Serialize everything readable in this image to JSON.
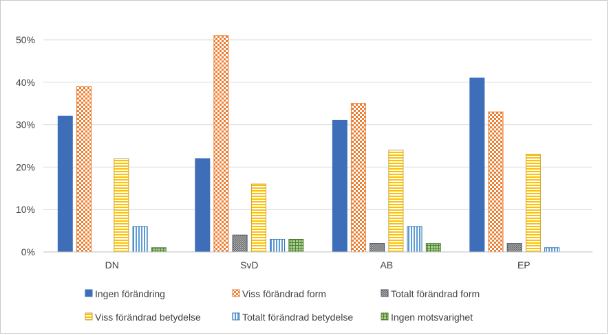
{
  "chart_data": {
    "type": "bar",
    "title": "",
    "xlabel": "",
    "ylabel": "",
    "categories": [
      "DN",
      "SvD",
      "AB",
      "EP"
    ],
    "ylim": [
      0,
      55
    ],
    "y_ticks": [
      0,
      10,
      20,
      30,
      40,
      50
    ],
    "y_tick_labels": [
      "0%",
      "10%",
      "20%",
      "30%",
      "40%",
      "50%"
    ],
    "grid": true,
    "legend_position": "bottom",
    "series": [
      {
        "name": "Ingen förändring",
        "values": [
          32,
          22,
          31,
          41
        ],
        "color": "#3f6eb9",
        "pattern": "solid"
      },
      {
        "name": "Viss förändrad form",
        "values": [
          39,
          51,
          35,
          33
        ],
        "color": "#ed7d31",
        "pattern": "checker"
      },
      {
        "name": "Totalt förändrad form",
        "values": [
          0,
          4,
          2,
          2
        ],
        "color": "#7f7f7f",
        "pattern": "dots"
      },
      {
        "name": "Viss förändrad betydelse",
        "values": [
          22,
          16,
          24,
          23
        ],
        "color": "#ffc000",
        "pattern": "hstripes"
      },
      {
        "name": "Totalt förändrad betydelse",
        "values": [
          6,
          3,
          6,
          1
        ],
        "color": "#5b9bd5",
        "pattern": "vstripes"
      },
      {
        "name": "Ingen motsvarighet",
        "values": [
          1,
          3,
          2,
          0
        ],
        "color": "#70ad47",
        "pattern": "grid"
      }
    ]
  }
}
